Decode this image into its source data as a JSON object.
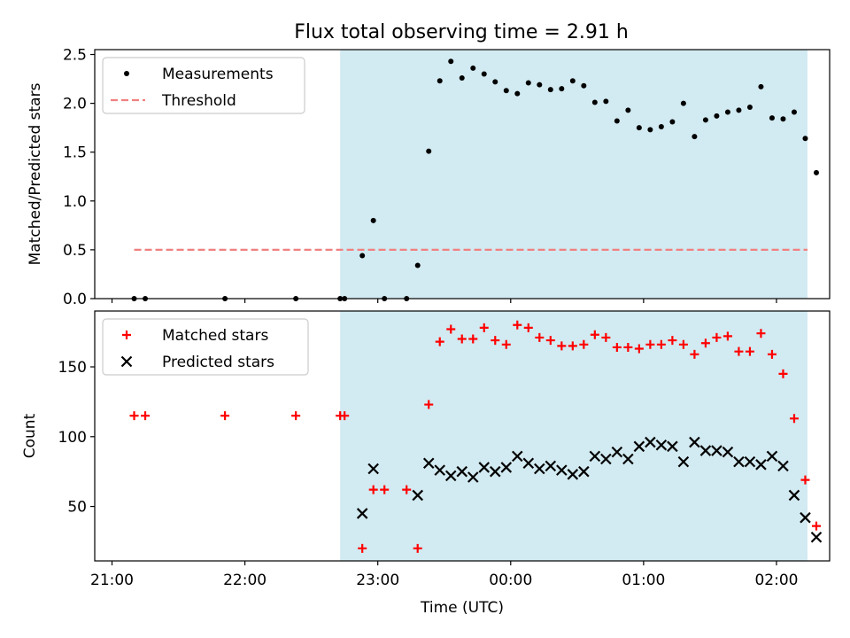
{
  "title": "Flux total observing time = 2.91 h",
  "chart_data": [
    {
      "type": "scatter",
      "ylabel": "Matched/Predicted stars",
      "ylim": [
        0,
        2.55
      ],
      "xlim": [
        -0.13,
        5.4
      ],
      "y_ticks": [
        0.0,
        0.5,
        1.0,
        1.5,
        2.0,
        2.5
      ],
      "y_tick_labels": [
        "0.0",
        "0.5",
        "1.0",
        "1.5",
        "2.0",
        "2.5"
      ],
      "legend_position": "top-left",
      "shaded_interval": {
        "from": "22:43",
        "to": "02:14",
        "color": "#add8e6"
      },
      "series": [
        {
          "name": "Measurements",
          "marker": "dot",
          "color": "#000000",
          "points": [
            [
              "21:10",
              0.0
            ],
            [
              "21:15",
              0.0
            ],
            [
              "21:51",
              0.0
            ],
            [
              "22:23",
              0.0
            ],
            [
              "22:43",
              0.0
            ],
            [
              "22:45",
              0.0
            ],
            [
              "22:53",
              0.44
            ],
            [
              "22:58",
              0.8
            ],
            [
              "23:03",
              0.0
            ],
            [
              "23:13",
              0.0
            ],
            [
              "23:18",
              0.34
            ],
            [
              "23:23",
              1.51
            ],
            [
              "23:28",
              2.23
            ],
            [
              "23:33",
              2.43
            ],
            [
              "23:38",
              2.26
            ],
            [
              "23:43",
              2.36
            ],
            [
              "23:48",
              2.3
            ],
            [
              "23:53",
              2.22
            ],
            [
              "23:58",
              2.13
            ],
            [
              "00:03",
              2.1
            ],
            [
              "00:08",
              2.21
            ],
            [
              "00:13",
              2.19
            ],
            [
              "00:18",
              2.14
            ],
            [
              "00:23",
              2.15
            ],
            [
              "00:28",
              2.23
            ],
            [
              "00:33",
              2.18
            ],
            [
              "00:38",
              2.01
            ],
            [
              "00:43",
              2.02
            ],
            [
              "00:48",
              1.82
            ],
            [
              "00:53",
              1.93
            ],
            [
              "00:58",
              1.75
            ],
            [
              "01:03",
              1.73
            ],
            [
              "01:08",
              1.76
            ],
            [
              "01:13",
              1.81
            ],
            [
              "01:18",
              2.0
            ],
            [
              "01:23",
              1.66
            ],
            [
              "01:28",
              1.83
            ],
            [
              "01:33",
              1.87
            ],
            [
              "01:38",
              1.91
            ],
            [
              "01:43",
              1.93
            ],
            [
              "01:48",
              1.96
            ],
            [
              "01:53",
              2.17
            ],
            [
              "01:58",
              1.85
            ],
            [
              "02:03",
              1.84
            ],
            [
              "02:08",
              1.91
            ],
            [
              "02:13",
              1.64
            ],
            [
              "02:18",
              1.29
            ]
          ]
        },
        {
          "name": "Threshold",
          "style": "dashed",
          "color": "#f08080",
          "points": [
            [
              "21:10",
              0.5
            ],
            [
              "02:14",
              0.5
            ]
          ]
        }
      ]
    },
    {
      "type": "scatter",
      "xlabel": "Time (UTC)",
      "ylabel": "Count",
      "ylim": [
        11,
        190
      ],
      "xlim": [
        -0.13,
        5.4
      ],
      "y_ticks": [
        50,
        100,
        150
      ],
      "y_tick_labels": [
        "50",
        "100",
        "150"
      ],
      "x_ticks": [
        "21:00",
        "22:00",
        "23:00",
        "00:00",
        "01:00",
        "02:00"
      ],
      "legend_position": "top-left",
      "shaded_interval": {
        "from": "22:43",
        "to": "02:14",
        "color": "#add8e6"
      },
      "series": [
        {
          "name": "Matched stars",
          "marker": "plus",
          "color": "#ff0000",
          "points": [
            [
              "21:10",
              115
            ],
            [
              "21:15",
              115
            ],
            [
              "21:51",
              115
            ],
            [
              "22:23",
              115
            ],
            [
              "22:43",
              115
            ],
            [
              "22:45",
              115
            ],
            [
              "22:53",
              20
            ],
            [
              "22:58",
              62
            ],
            [
              "23:03",
              62
            ],
            [
              "23:13",
              62
            ],
            [
              "23:18",
              20
            ],
            [
              "23:23",
              123
            ],
            [
              "23:28",
              168
            ],
            [
              "23:33",
              177
            ],
            [
              "23:38",
              170
            ],
            [
              "23:43",
              170
            ],
            [
              "23:48",
              178
            ],
            [
              "23:53",
              169
            ],
            [
              "23:58",
              166
            ],
            [
              "00:03",
              180
            ],
            [
              "00:08",
              178
            ],
            [
              "00:13",
              171
            ],
            [
              "00:18",
              169
            ],
            [
              "00:23",
              165
            ],
            [
              "00:28",
              165
            ],
            [
              "00:33",
              166
            ],
            [
              "00:38",
              173
            ],
            [
              "00:43",
              171
            ],
            [
              "00:48",
              164
            ],
            [
              "00:53",
              164
            ],
            [
              "00:58",
              163
            ],
            [
              "01:03",
              166
            ],
            [
              "01:08",
              166
            ],
            [
              "01:13",
              169
            ],
            [
              "01:18",
              166
            ],
            [
              "01:23",
              159
            ],
            [
              "01:28",
              167
            ],
            [
              "01:33",
              171
            ],
            [
              "01:38",
              172
            ],
            [
              "01:43",
              161
            ],
            [
              "01:48",
              161
            ],
            [
              "01:53",
              174
            ],
            [
              "01:58",
              159
            ],
            [
              "02:03",
              145
            ],
            [
              "02:08",
              113
            ],
            [
              "02:13",
              69
            ],
            [
              "02:18",
              36
            ]
          ]
        },
        {
          "name": "Predicted stars",
          "marker": "x",
          "color": "#000000",
          "points": [
            [
              "22:53",
              45
            ],
            [
              "22:58",
              77
            ],
            [
              "23:18",
              58
            ],
            [
              "23:23",
              81
            ],
            [
              "23:28",
              76
            ],
            [
              "23:33",
              72
            ],
            [
              "23:38",
              75
            ],
            [
              "23:43",
              71
            ],
            [
              "23:48",
              78
            ],
            [
              "23:53",
              75
            ],
            [
              "23:58",
              78
            ],
            [
              "00:03",
              86
            ],
            [
              "00:08",
              81
            ],
            [
              "00:13",
              77
            ],
            [
              "00:18",
              79
            ],
            [
              "00:23",
              76
            ],
            [
              "00:28",
              73
            ],
            [
              "00:33",
              75
            ],
            [
              "00:38",
              86
            ],
            [
              "00:43",
              84
            ],
            [
              "00:48",
              89
            ],
            [
              "00:53",
              84
            ],
            [
              "00:58",
              93
            ],
            [
              "01:03",
              96
            ],
            [
              "01:08",
              94
            ],
            [
              "01:13",
              93
            ],
            [
              "01:18",
              82
            ],
            [
              "01:23",
              96
            ],
            [
              "01:28",
              90
            ],
            [
              "01:33",
              90
            ],
            [
              "01:38",
              89
            ],
            [
              "01:43",
              82
            ],
            [
              "01:48",
              82
            ],
            [
              "01:53",
              80
            ],
            [
              "01:58",
              86
            ],
            [
              "02:03",
              79
            ],
            [
              "02:08",
              58
            ],
            [
              "02:13",
              42
            ],
            [
              "02:18",
              28
            ]
          ]
        }
      ]
    }
  ]
}
